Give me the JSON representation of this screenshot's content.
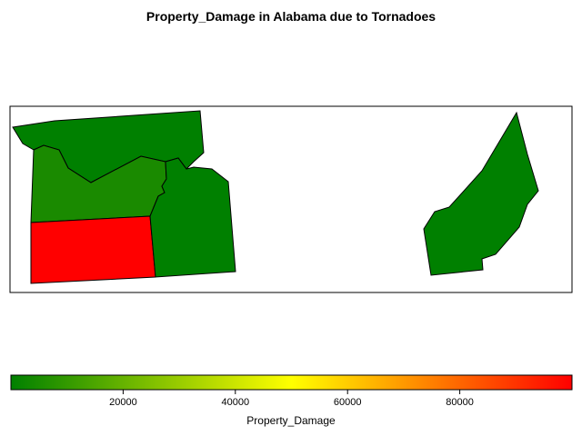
{
  "title": "Property_Damage in Alabama due to Tornadoes",
  "map": {
    "regions": [
      {
        "id": "region-north",
        "value_level": "low",
        "color": "#008000"
      },
      {
        "id": "region-central-west",
        "value_level": "low",
        "color": "#1a8a00"
      },
      {
        "id": "region-southwest",
        "value_level": "high",
        "color": "#ff0000"
      },
      {
        "id": "region-central-east",
        "value_level": "low",
        "color": "#008000"
      },
      {
        "id": "region-east",
        "value_level": "low",
        "color": "#008000"
      }
    ]
  },
  "legend": {
    "label": "Property_Damage",
    "min": 0,
    "max": 100000,
    "ticks": [
      {
        "value": 20000,
        "label": "20000"
      },
      {
        "value": 40000,
        "label": "40000"
      },
      {
        "value": 60000,
        "label": "60000"
      },
      {
        "value": 80000,
        "label": "80000"
      }
    ],
    "colors": {
      "low": "#008000",
      "mid": "#ffff00",
      "high": "#ff0000"
    }
  }
}
